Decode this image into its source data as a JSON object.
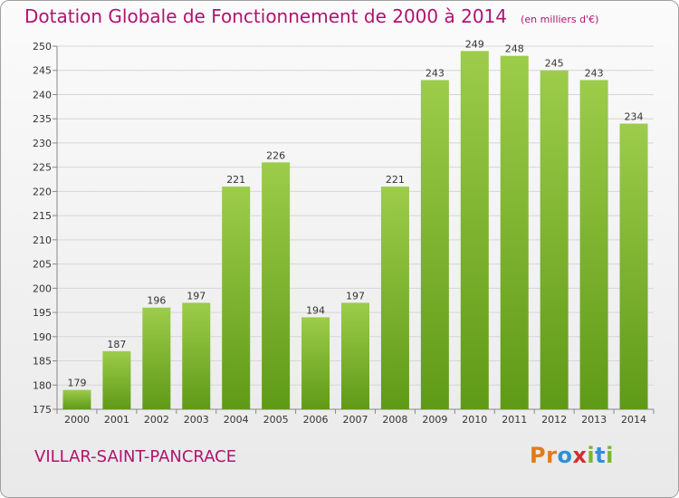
{
  "header": {
    "title": "Dotation Globale de Fonctionnement de 2000 à 2014",
    "unit_note": "(en milliers d'€)"
  },
  "footer": {
    "commune": "VILLAR-SAINT-PANCRACE",
    "logo": {
      "letters": [
        "P",
        "r",
        "o",
        "x",
        "i",
        "t",
        "i"
      ],
      "colors": [
        "#e07b1a",
        "#e07b1a",
        "#2f8fd6",
        "#d12f2f",
        "#7cb531",
        "#2f8fd6",
        "#7cb531"
      ]
    }
  },
  "colors": {
    "bar_light": "#9ccc4a",
    "bar_dark": "#5f9a16",
    "accent": "#b0136f",
    "grid": "#d6d6d6"
  },
  "chart_data": {
    "type": "bar",
    "categories": [
      "2000",
      "2001",
      "2002",
      "2003",
      "2004",
      "2005",
      "2006",
      "2007",
      "2008",
      "2009",
      "2010",
      "2011",
      "2012",
      "2013",
      "2014"
    ],
    "values": [
      179,
      187,
      196,
      197,
      221,
      226,
      194,
      197,
      221,
      243,
      249,
      248,
      245,
      243,
      234
    ],
    "data_labels": [
      "179",
      "187",
      "196",
      "197",
      "221",
      "226",
      "194",
      "197",
      "221",
      "243",
      "249",
      "248",
      "245",
      "243",
      "234"
    ],
    "ylim": [
      175,
      250
    ],
    "yticks": [
      175,
      180,
      185,
      190,
      195,
      200,
      205,
      210,
      215,
      220,
      225,
      230,
      235,
      240,
      245,
      250
    ],
    "grid": true
  }
}
